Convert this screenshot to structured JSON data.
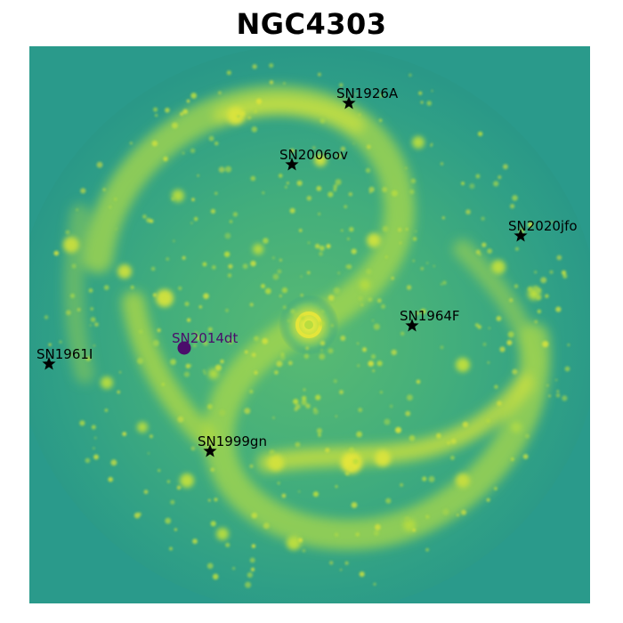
{
  "title": "NGC4303",
  "colors": {
    "background_field": "#2a9a8b",
    "arm_glow": "#b9dd3f",
    "hotspot": "#e2e53a",
    "marker_star": "#000000",
    "marker_highlight": "#4b0d6b"
  },
  "supernovae": [
    {
      "name": "SN1926A",
      "marker": "star-icon"
    },
    {
      "name": "SN2006ov",
      "marker": "star-icon"
    },
    {
      "name": "SN2020jfo",
      "marker": "star-icon"
    },
    {
      "name": "SN1964F",
      "marker": "star-icon"
    },
    {
      "name": "SN2014dt",
      "marker": "circle-icon"
    },
    {
      "name": "SN1961I",
      "marker": "star-icon"
    },
    {
      "name": "SN1999gn",
      "marker": "star-icon"
    }
  ]
}
